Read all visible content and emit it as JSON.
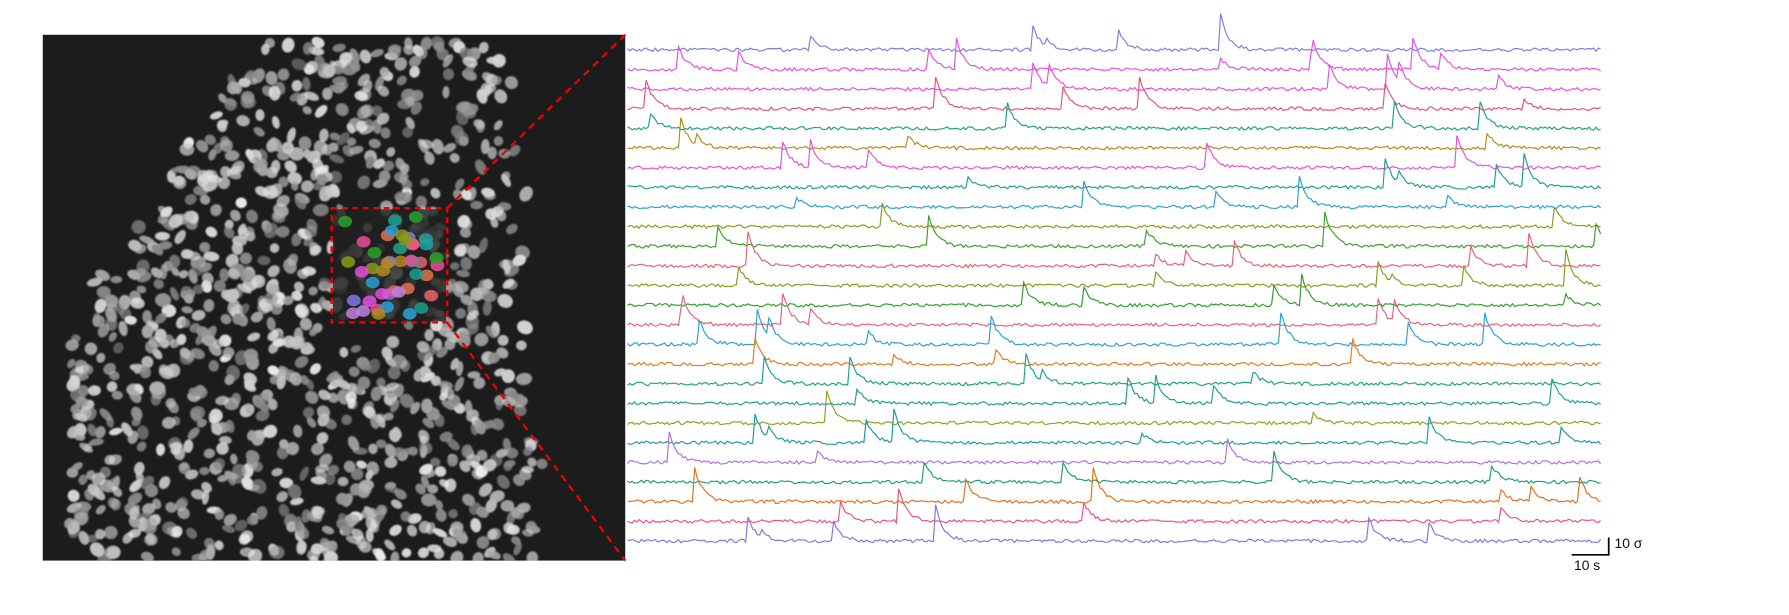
{
  "scale_bar": {
    "vertical_label": "10 σ",
    "horizontal_label": "10 s"
  }
}
